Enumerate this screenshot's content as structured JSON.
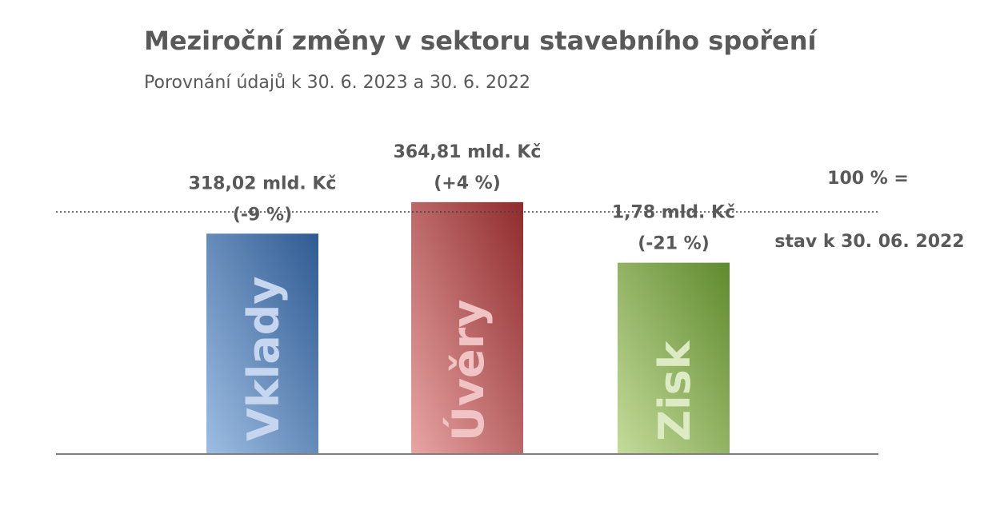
{
  "chart_data": {
    "type": "bar",
    "title": "Meziroční změny v sektoru stavebního spoření",
    "subtitle": "Porovnání údajů k 30. 6. 2023 a 30. 6. 2022",
    "reference": {
      "value": 100,
      "label_line1": "100 % =",
      "label_line2": "stav k 30. 06. 2022"
    },
    "categories": [
      "Vklady",
      "Úvěry",
      "Zisk"
    ],
    "values": [
      91,
      104,
      79
    ],
    "value_labels": [
      [
        "318,02 mld. Kč",
        "(-9 %)"
      ],
      [
        "364,81 mld. Kč",
        "(+4 %)"
      ],
      [
        "1,78 mld. Kč",
        "(-21 %)"
      ]
    ],
    "ylim": [
      0,
      110
    ],
    "grid": false,
    "colors": {
      "bars": [
        {
          "dark": "#2f5a92",
          "light": "#9dbde2",
          "text": "#c5d6ee"
        },
        {
          "dark": "#8f2b2d",
          "light": "#e8a5a4",
          "text": "#f0c4c4"
        },
        {
          "dark": "#5f8a2e",
          "light": "#c4db9a",
          "text": "#dcebc3"
        }
      ],
      "text": "#595959",
      "axis": "#7f7f7f",
      "reference_line": "#404040"
    }
  }
}
